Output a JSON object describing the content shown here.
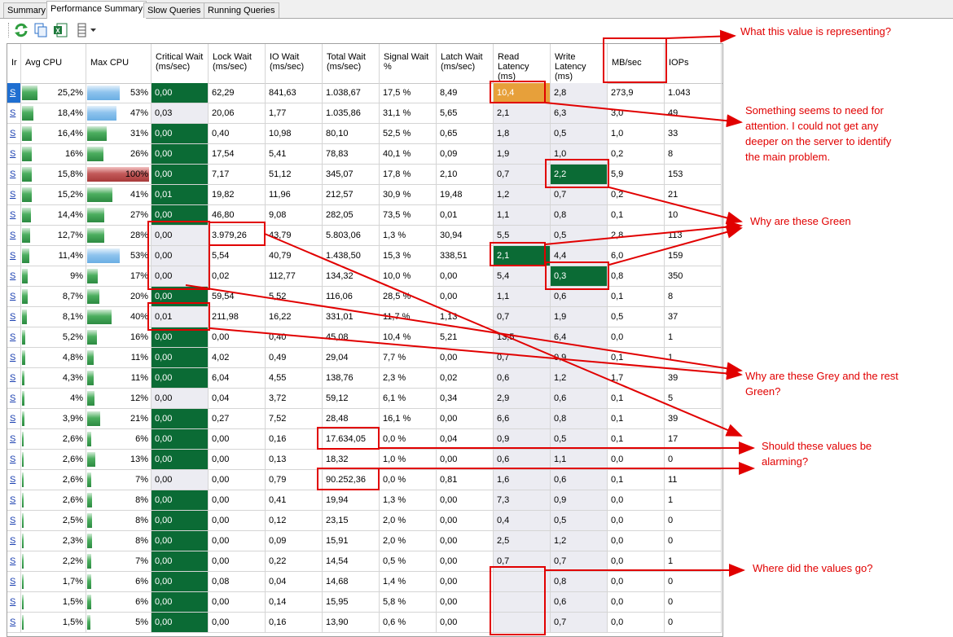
{
  "tabs": [
    {
      "label": "Summary",
      "active": false
    },
    {
      "label": "Performance Summary",
      "active": true
    },
    {
      "label": "Slow Queries",
      "active": false
    },
    {
      "label": "Running Queries",
      "active": false
    }
  ],
  "toolbar": {
    "icons": [
      "refresh-icon",
      "copy-icon",
      "excel-export-icon",
      "columns-icon",
      "dropdown-arrow-icon"
    ]
  },
  "columns": [
    {
      "key": "ins",
      "label": "Ir"
    },
    {
      "key": "avg",
      "label": "Avg CPU"
    },
    {
      "key": "max",
      "label": "Max CPU"
    },
    {
      "key": "crit",
      "label": "Critical Wait (ms/sec)"
    },
    {
      "key": "lock",
      "label": "Lock Wait (ms/sec)"
    },
    {
      "key": "io",
      "label": "IO Wait (ms/sec)"
    },
    {
      "key": "total",
      "label": "Total Wait (ms/sec)"
    },
    {
      "key": "signal",
      "label": "Signal Wait %"
    },
    {
      "key": "latch",
      "label": "Latch Wait (ms/sec)"
    },
    {
      "key": "readlat",
      "label": "Read Latency (ms)"
    },
    {
      "key": "writelat",
      "label": "Write Latency (ms)"
    },
    {
      "key": "mbsec",
      "label": "MB/sec"
    },
    {
      "key": "iops",
      "label": "IOPs"
    }
  ],
  "colors": {
    "green": "#0b6b35",
    "grey": "#ececf2",
    "orange": "#e7a03a",
    "annotation": "#e10000",
    "link": "#1a3fb0"
  },
  "rows": [
    {
      "s": "S",
      "avg": "25,2%",
      "avgf": 0.252,
      "max": "53%",
      "maxf": 0.53,
      "maxc": "b",
      "crit": "0,00",
      "critc": "green",
      "lock": "62,29",
      "io": "841,63",
      "total": "1.038,67",
      "signal": "17,5 %",
      "latch": "8,49",
      "read": "10,4",
      "readc": "orange",
      "write": "2,8",
      "mb": "273,9",
      "iops": "1.043",
      "sel": true
    },
    {
      "s": "S",
      "avg": "18,4%",
      "avgf": 0.184,
      "max": "47%",
      "maxf": 0.47,
      "maxc": "b",
      "crit": "0,03",
      "critc": "grey",
      "lock": "20,06",
      "io": "1,77",
      "total": "1.035,86",
      "signal": "31,1 %",
      "latch": "5,65",
      "read": "2,1",
      "write": "6,3",
      "mb": "3,0",
      "iops": "49"
    },
    {
      "s": "S",
      "avg": "16,4%",
      "avgf": 0.164,
      "max": "31%",
      "maxf": 0.31,
      "maxc": "g",
      "crit": "0,00",
      "critc": "green",
      "lock": "0,40",
      "io": "10,98",
      "total": "80,10",
      "signal": "52,5 %",
      "latch": "0,65",
      "read": "1,8",
      "write": "0,5",
      "mb": "1,0",
      "iops": "33"
    },
    {
      "s": "S",
      "avg": "16%",
      "avgf": 0.16,
      "max": "26%",
      "maxf": 0.26,
      "maxc": "g",
      "crit": "0,00",
      "critc": "green",
      "lock": "17,54",
      "io": "5,41",
      "total": "78,83",
      "signal": "40,1 %",
      "latch": "0,09",
      "read": "1,9",
      "write": "1,0",
      "mb": "0,2",
      "iops": "8"
    },
    {
      "s": "S",
      "avg": "15,8%",
      "avgf": 0.158,
      "max": "100%",
      "maxf": 1.0,
      "maxc": "r",
      "crit": "0,00",
      "critc": "green",
      "lock": "7,17",
      "io": "51,12",
      "total": "345,07",
      "signal": "17,8 %",
      "latch": "2,10",
      "read": "0,7",
      "write": "2,2",
      "writec": "green",
      "mb": "5,9",
      "iops": "153"
    },
    {
      "s": "S",
      "avg": "15,2%",
      "avgf": 0.152,
      "max": "41%",
      "maxf": 0.41,
      "maxc": "g",
      "crit": "0,01",
      "critc": "green",
      "lock": "19,82",
      "io": "11,96",
      "total": "212,57",
      "signal": "30,9 %",
      "latch": "19,48",
      "read": "1,2",
      "write": "0,7",
      "mb": "0,2",
      "iops": "21"
    },
    {
      "s": "S",
      "avg": "14,4%",
      "avgf": 0.144,
      "max": "27%",
      "maxf": 0.27,
      "maxc": "g",
      "crit": "0,00",
      "critc": "green",
      "lock": "46,80",
      "io": "9,08",
      "total": "282,05",
      "signal": "73,5 %",
      "latch": "0,01",
      "read": "1,1",
      "write": "0,8",
      "mb": "0,1",
      "iops": "10"
    },
    {
      "s": "S",
      "avg": "12,7%",
      "avgf": 0.127,
      "max": "28%",
      "maxf": 0.28,
      "maxc": "g",
      "crit": "0,00",
      "critc": "grey",
      "lock": "3.979,26",
      "io": "43,79",
      "total": "5.803,06",
      "signal": "1,3 %",
      "latch": "30,94",
      "read": "5,5",
      "write": "0,5",
      "mb": "2,8",
      "iops": "113"
    },
    {
      "s": "S",
      "avg": "11,4%",
      "avgf": 0.114,
      "max": "53%",
      "maxf": 0.53,
      "maxc": "b",
      "crit": "0,00",
      "critc": "grey",
      "lock": "5,54",
      "io": "40,79",
      "total": "1.438,50",
      "signal": "15,3 %",
      "latch": "338,51",
      "read": "2,1",
      "readc": "green",
      "write": "4,4",
      "mb": "6,0",
      "iops": "159"
    },
    {
      "s": "S",
      "avg": "9%",
      "avgf": 0.09,
      "max": "17%",
      "maxf": 0.17,
      "maxc": "g",
      "crit": "0,00",
      "critc": "grey",
      "lock": "0,02",
      "io": "112,77",
      "total": "134,32",
      "signal": "10,0 %",
      "latch": "0,00",
      "read": "5,4",
      "write": "0,3",
      "writec": "green",
      "mb": "0,8",
      "iops": "350"
    },
    {
      "s": "S",
      "avg": "8,7%",
      "avgf": 0.087,
      "max": "20%",
      "maxf": 0.2,
      "maxc": "g",
      "crit": "0,00",
      "critc": "green",
      "lock": "59,54",
      "io": "5,52",
      "total": "116,06",
      "signal": "28,5 %",
      "latch": "0,00",
      "read": "1,1",
      "write": "0,6",
      "mb": "0,1",
      "iops": "8"
    },
    {
      "s": "S",
      "avg": "8,1%",
      "avgf": 0.081,
      "max": "40%",
      "maxf": 0.4,
      "maxc": "g",
      "crit": "0,01",
      "critc": "grey",
      "lock": "211,98",
      "io": "16,22",
      "total": "331,01",
      "signal": "11,7 %",
      "latch": "1,13",
      "read": "0,7",
      "write": "1,9",
      "mb": "0,5",
      "iops": "37"
    },
    {
      "s": "S",
      "avg": "5,2%",
      "avgf": 0.052,
      "max": "16%",
      "maxf": 0.16,
      "maxc": "g",
      "crit": "0,00",
      "critc": "green",
      "lock": "0,00",
      "io": "0,40",
      "total": "45,08",
      "signal": "10,4 %",
      "latch": "5,21",
      "read": "13,5",
      "write": "6,4",
      "mb": "0,0",
      "iops": "1"
    },
    {
      "s": "S",
      "avg": "4,8%",
      "avgf": 0.048,
      "max": "11%",
      "maxf": 0.11,
      "maxc": "g",
      "crit": "0,00",
      "critc": "green",
      "lock": "4,02",
      "io": "0,49",
      "total": "29,04",
      "signal": "7,7 %",
      "latch": "0,00",
      "read": "0,7",
      "write": "0,9",
      "mb": "0,1",
      "iops": "1"
    },
    {
      "s": "S",
      "avg": "4,3%",
      "avgf": 0.043,
      "max": "11%",
      "maxf": 0.11,
      "maxc": "g",
      "crit": "0,00",
      "critc": "green",
      "lock": "6,04",
      "io": "4,55",
      "total": "138,76",
      "signal": "2,3 %",
      "latch": "0,02",
      "read": "0,6",
      "write": "1,2",
      "mb": "1,7",
      "iops": "39"
    },
    {
      "s": "S",
      "avg": "4%",
      "avgf": 0.04,
      "max": "12%",
      "maxf": 0.12,
      "maxc": "g",
      "crit": "0,00",
      "critc": "grey",
      "lock": "0,04",
      "io": "3,72",
      "total": "59,12",
      "signal": "6,1 %",
      "latch": "0,34",
      "read": "2,9",
      "write": "0,6",
      "mb": "0,1",
      "iops": "5"
    },
    {
      "s": "S",
      "avg": "3,9%",
      "avgf": 0.039,
      "max": "21%",
      "maxf": 0.21,
      "maxc": "g",
      "crit": "0,00",
      "critc": "green",
      "lock": "0,27",
      "io": "7,52",
      "total": "28,48",
      "signal": "16,1 %",
      "latch": "0,00",
      "read": "6,6",
      "write": "0,8",
      "mb": "0,1",
      "iops": "39"
    },
    {
      "s": "S",
      "avg": "2,6%",
      "avgf": 0.026,
      "max": "6%",
      "maxf": 0.06,
      "maxc": "g",
      "crit": "0,00",
      "critc": "green",
      "lock": "0,00",
      "io": "0,16",
      "total": "17.634,05",
      "signal": "0,0 %",
      "latch": "0,04",
      "read": "0,9",
      "write": "0,5",
      "mb": "0,1",
      "iops": "17"
    },
    {
      "s": "S",
      "avg": "2,6%",
      "avgf": 0.026,
      "max": "13%",
      "maxf": 0.13,
      "maxc": "g",
      "crit": "0,00",
      "critc": "green",
      "lock": "0,00",
      "io": "0,13",
      "total": "18,32",
      "signal": "1,0 %",
      "latch": "0,00",
      "read": "0,6",
      "write": "1,1",
      "mb": "0,0",
      "iops": "0"
    },
    {
      "s": "S",
      "avg": "2,6%",
      "avgf": 0.026,
      "max": "7%",
      "maxf": 0.07,
      "maxc": "g",
      "crit": "0,00",
      "critc": "grey",
      "lock": "0,00",
      "io": "0,79",
      "total": "90.252,36",
      "signal": "0,0 %",
      "latch": "0,81",
      "read": "1,6",
      "write": "0,6",
      "mb": "0,1",
      "iops": "11"
    },
    {
      "s": "S",
      "avg": "2,6%",
      "avgf": 0.026,
      "max": "8%",
      "maxf": 0.08,
      "maxc": "g",
      "crit": "0,00",
      "critc": "green",
      "lock": "0,00",
      "io": "0,41",
      "total": "19,94",
      "signal": "1,3 %",
      "latch": "0,00",
      "read": "7,3",
      "write": "0,9",
      "mb": "0,0",
      "iops": "1"
    },
    {
      "s": "S",
      "avg": "2,5%",
      "avgf": 0.025,
      "max": "8%",
      "maxf": 0.08,
      "maxc": "g",
      "crit": "0,00",
      "critc": "green",
      "lock": "0,00",
      "io": "0,12",
      "total": "23,15",
      "signal": "2,0 %",
      "latch": "0,00",
      "read": "0,4",
      "write": "0,5",
      "mb": "0,0",
      "iops": "0"
    },
    {
      "s": "S",
      "avg": "2,3%",
      "avgf": 0.023,
      "max": "8%",
      "maxf": 0.08,
      "maxc": "g",
      "crit": "0,00",
      "critc": "green",
      "lock": "0,00",
      "io": "0,09",
      "total": "15,91",
      "signal": "2,0 %",
      "latch": "0,00",
      "read": "2,5",
      "write": "1,2",
      "mb": "0,0",
      "iops": "0"
    },
    {
      "s": "S",
      "avg": "2,2%",
      "avgf": 0.022,
      "max": "7%",
      "maxf": 0.07,
      "maxc": "g",
      "crit": "0,00",
      "critc": "green",
      "lock": "0,00",
      "io": "0,22",
      "total": "14,54",
      "signal": "0,5 %",
      "latch": "0,00",
      "read": "0,7",
      "write": "0,7",
      "mb": "0,0",
      "iops": "1"
    },
    {
      "s": "S",
      "avg": "1,7%",
      "avgf": 0.017,
      "max": "6%",
      "maxf": 0.06,
      "maxc": "g",
      "crit": "0,00",
      "critc": "green",
      "lock": "0,08",
      "io": "0,04",
      "total": "14,68",
      "signal": "1,4 %",
      "latch": "0,00",
      "read": "",
      "write": "0,8",
      "mb": "0,0",
      "iops": "0"
    },
    {
      "s": "S",
      "avg": "1,5%",
      "avgf": 0.015,
      "max": "6%",
      "maxf": 0.06,
      "maxc": "g",
      "crit": "0,00",
      "critc": "green",
      "lock": "0,00",
      "io": "0,14",
      "total": "15,95",
      "signal": "5,8 %",
      "latch": "0,00",
      "read": "",
      "write": "0,6",
      "mb": "0,0",
      "iops": "0"
    },
    {
      "s": "S",
      "avg": "1,5%",
      "avgf": 0.015,
      "max": "5%",
      "maxf": 0.05,
      "maxc": "g",
      "crit": "0,00",
      "critc": "green",
      "lock": "0,00",
      "io": "0,16",
      "total": "13,90",
      "signal": "0,6 %",
      "latch": "0,00",
      "read": "",
      "write": "0,7",
      "mb": "0,0",
      "iops": "0"
    }
  ],
  "annotations": {
    "mbsec": "What this value is representing?",
    "attention": [
      "Something seems to need for",
      "attention. I could not get any",
      "deeper on the server to identify",
      "the main problem."
    ],
    "green": "Why are these Green",
    "grey": [
      "Why are these Grey and the rest",
      "Green?"
    ],
    "alarming": [
      "Should these values be",
      "alarming?"
    ],
    "missing": "Where did the values go?"
  }
}
